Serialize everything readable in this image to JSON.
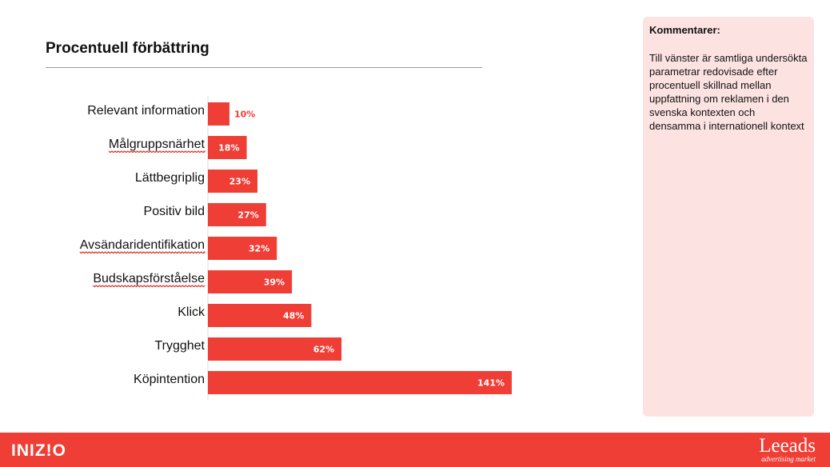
{
  "slide": {
    "title": "Procentuell förbättring"
  },
  "comments": {
    "heading": "Kommentarer:",
    "text": "Till vänster är samtliga undersökta parametrar redovisade efter procentuell skillnad mellan uppfattning om reklamen i den svenska kontexten och densamma i internationell kontext"
  },
  "footer": {
    "left_logo": "INIZ!O",
    "right_logo_name": "Leeads",
    "right_logo_tagline": "advertising market",
    "color": "#ef3e36"
  },
  "chart_data": {
    "type": "bar",
    "orientation": "horizontal",
    "categories": [
      "Relevant information",
      "Målgruppsnärhet",
      "Lättbegriplig",
      "Positiv bild",
      "Avsändaridentifikation",
      "Budskapsförståelse",
      "Klick",
      "Trygghet",
      "Köpintention"
    ],
    "values": [
      10,
      18,
      23,
      27,
      32,
      39,
      48,
      62,
      141
    ],
    "value_labels": [
      "10%",
      "18%",
      "23%",
      "27%",
      "32%",
      "39%",
      "48%",
      "62%",
      "141%"
    ],
    "unit": "%",
    "xlim": [
      0,
      141
    ],
    "grid": false,
    "legend": "none",
    "bar_color": "#ef3e36",
    "spellcheck_underlined": [
      false,
      true,
      false,
      false,
      true,
      true,
      false,
      false,
      false
    ]
  }
}
